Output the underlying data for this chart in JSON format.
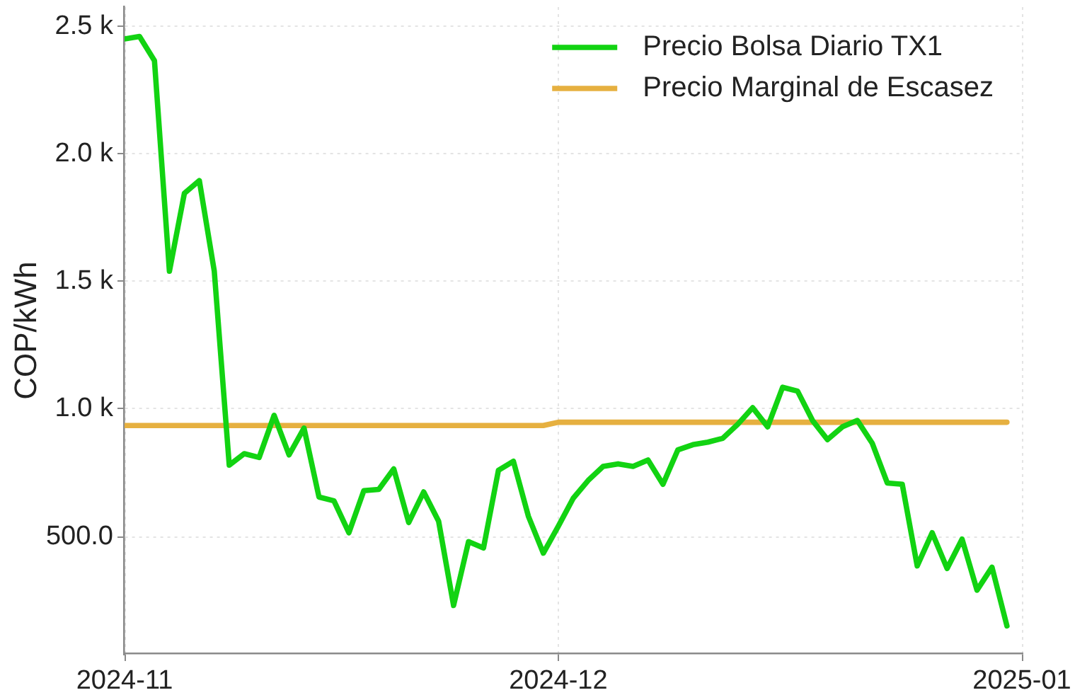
{
  "chart_data": {
    "type": "line",
    "ylabel": "COP/kWh",
    "x": [
      "2024-11-02",
      "2024-11-03",
      "2024-11-04",
      "2024-11-05",
      "2024-11-06",
      "2024-11-07",
      "2024-11-08",
      "2024-11-09",
      "2024-11-10",
      "2024-11-11",
      "2024-11-12",
      "2024-11-13",
      "2024-11-14",
      "2024-11-15",
      "2024-11-16",
      "2024-11-17",
      "2024-11-18",
      "2024-11-19",
      "2024-11-20",
      "2024-11-21",
      "2024-11-22",
      "2024-11-23",
      "2024-11-24",
      "2024-11-25",
      "2024-11-26",
      "2024-11-27",
      "2024-11-28",
      "2024-11-29",
      "2024-11-30",
      "2024-12-01",
      "2024-12-02",
      "2024-12-03",
      "2024-12-04",
      "2024-12-05",
      "2024-12-06",
      "2024-12-07",
      "2024-12-08",
      "2024-12-09",
      "2024-12-10",
      "2024-12-11",
      "2024-12-12",
      "2024-12-13",
      "2024-12-14",
      "2024-12-15",
      "2024-12-16",
      "2024-12-17",
      "2024-12-18",
      "2024-12-19",
      "2024-12-20",
      "2024-12-21",
      "2024-12-22",
      "2024-12-23",
      "2024-12-24",
      "2024-12-25",
      "2024-12-26",
      "2024-12-27",
      "2024-12-28",
      "2024-12-29",
      "2024-12-30",
      "2024-12-31"
    ],
    "series": [
      {
        "name": "Precio Bolsa Diario TX1",
        "color": "#12d312",
        "values": [
          2450,
          2460,
          2365,
          1540,
          1845,
          1895,
          1540,
          780,
          825,
          810,
          975,
          820,
          925,
          655,
          640,
          515,
          680,
          685,
          765,
          555,
          675,
          560,
          230,
          480,
          455,
          760,
          795,
          580,
          435,
          540,
          650,
          720,
          775,
          785,
          775,
          800,
          705,
          840,
          860,
          870,
          885,
          940,
          1005,
          930,
          1085,
          1070,
          955,
          880,
          930,
          955,
          865,
          710,
          705,
          385,
          515,
          375,
          490,
          290,
          380,
          150
        ]
      },
      {
        "name": "Precio Marginal de Escasez",
        "color": "#e6b040",
        "values": [
          935,
          935,
          935,
          935,
          935,
          935,
          935,
          935,
          935,
          935,
          935,
          935,
          935,
          935,
          935,
          935,
          935,
          935,
          935,
          935,
          935,
          935,
          935,
          935,
          935,
          935,
          935,
          935,
          935,
          948,
          948,
          948,
          948,
          948,
          948,
          948,
          948,
          948,
          948,
          948,
          948,
          948,
          948,
          948,
          948,
          948,
          948,
          948,
          948,
          948,
          948,
          948,
          948,
          948,
          948,
          948,
          948,
          948,
          948,
          948
        ]
      }
    ],
    "xlim": [
      "2024-11-02",
      "2025-01-01"
    ],
    "xticks": [
      {
        "value": "2024-11-02",
        "label": "2024-11"
      },
      "2024-12",
      "2025-01"
    ],
    "ylim": [
      40,
      2575
    ],
    "yticks": [
      {
        "value": 500,
        "label": "500.0"
      },
      {
        "value": 1000,
        "label": "1.0 k"
      },
      {
        "value": 1500,
        "label": "1.5 k"
      },
      {
        "value": 2000,
        "label": "2.0 k"
      },
      {
        "value": 2500,
        "label": "2.5 k"
      }
    ],
    "grid": true,
    "legend": "top right",
    "marker": "none"
  }
}
